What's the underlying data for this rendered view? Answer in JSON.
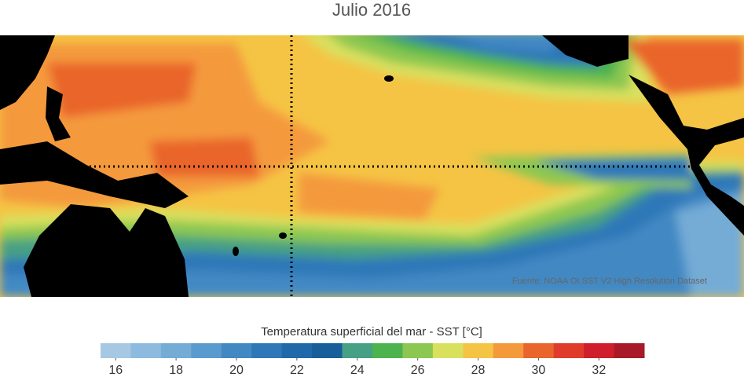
{
  "header": {
    "title": "Julio 2016"
  },
  "map": {
    "source": "Fuente: NOAA OI SST V2 High Resolution Dataset"
  },
  "colorbar": {
    "label": "Temperatura superficial del mar - SST  [°C]",
    "lim": [
      15.5,
      33.5
    ],
    "ticks": [
      16,
      18,
      20,
      22,
      24,
      26,
      28,
      30,
      32
    ],
    "colors": [
      "#a6c8e3",
      "#8dbbdf",
      "#74acd6",
      "#5a9bcf",
      "#4289c4",
      "#2f78b8",
      "#1f69ab",
      "#175e9a",
      "#46a083",
      "#4db34f",
      "#8cc751",
      "#d9e05e",
      "#f5c444",
      "#f49a3c",
      "#e9652c",
      "#e03c2c",
      "#cf1f2c",
      "#a8192a"
    ]
  }
}
